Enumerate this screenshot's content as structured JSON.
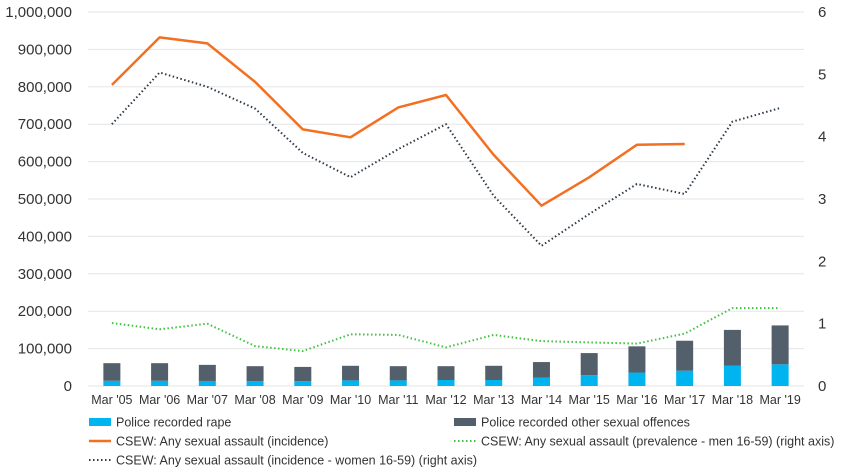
{
  "chart_data": {
    "type": "bar+line",
    "categories": [
      "Mar '05",
      "Mar '06",
      "Mar '07",
      "Mar '08",
      "Mar '09",
      "Mar '10",
      "Mar '11",
      "Mar '12",
      "Mar '13",
      "Mar '14",
      "Mar '15",
      "Mar '16",
      "Mar '17",
      "Mar '18",
      "Mar '19"
    ],
    "left_axis": {
      "min": 0,
      "max": 1000000,
      "step": 100000,
      "ticks": [
        "0",
        "100,000",
        "200,000",
        "300,000",
        "400,000",
        "500,000",
        "600,000",
        "700,000",
        "800,000",
        "900,000",
        "1,000,000"
      ]
    },
    "right_axis": {
      "min": 0,
      "max": 6,
      "step": 1,
      "ticks": [
        "0",
        "1",
        "2",
        "3",
        "4",
        "5",
        "6"
      ]
    },
    "grid": true,
    "legend_position": "bottom",
    "series": [
      {
        "name": "Police recorded rape",
        "kind": "bar",
        "axis": "left",
        "color": "#00b4f0",
        "values": [
          14000,
          14000,
          13500,
          13000,
          13000,
          15000,
          15000,
          16000,
          16000,
          22000,
          29000,
          36000,
          41000,
          54000,
          58000
        ]
      },
      {
        "name": "Police recorded other sexual offences",
        "kind": "bar",
        "axis": "left",
        "color": "#535f6b",
        "values": [
          47000,
          47000,
          43000,
          40000,
          38000,
          39000,
          38000,
          37000,
          38000,
          42000,
          59000,
          70000,
          80000,
          96000,
          104000
        ]
      },
      {
        "name": "CSEW: Any sexual assault (incidence)",
        "kind": "line",
        "axis": "left",
        "color": "#f36f21",
        "style": "solid",
        "values": [
          805000,
          932000,
          916000,
          813000,
          686000,
          665000,
          745000,
          778000,
          618000,
          482000,
          558000,
          645000,
          647000,
          null,
          null
        ]
      },
      {
        "name": "CSEW: Any sexual assault (prevalence - men 16-59) (right axis)",
        "kind": "line",
        "axis": "right",
        "color": "#3ec13e",
        "style": "dotted",
        "values": [
          1.01,
          0.91,
          1.0,
          0.64,
          0.56,
          0.83,
          0.82,
          0.62,
          0.82,
          0.72,
          0.7,
          0.68,
          0.84,
          1.25,
          1.25
        ]
      },
      {
        "name": "CSEW: Any sexual assault (incidence - women 16-59) (right axis)",
        "kind": "line",
        "axis": "right",
        "color": "#2e3a48",
        "style": "dotted",
        "values": [
          4.2,
          5.03,
          4.8,
          4.45,
          3.74,
          3.35,
          3.8,
          4.2,
          3.05,
          2.25,
          2.76,
          3.24,
          3.08,
          4.24,
          4.46
        ]
      }
    ]
  }
}
